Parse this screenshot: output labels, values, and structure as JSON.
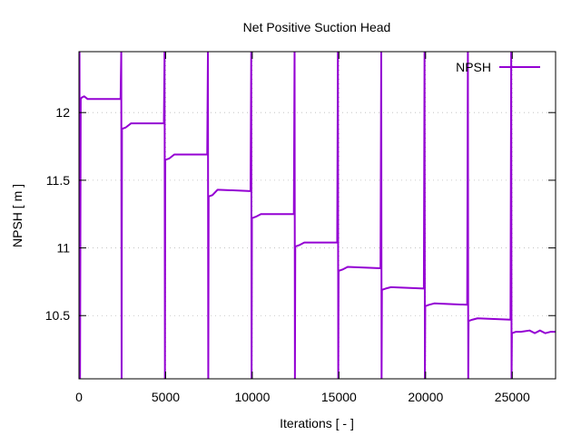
{
  "chart_data": {
    "type": "line",
    "title": "Net Positive Suction Head",
    "xlabel": "Iterations [ - ]",
    "ylabel": "NPSH [ m ]",
    "xlim": [
      0,
      27500
    ],
    "ylim": [
      10.033,
      12.45
    ],
    "xticks": [
      0,
      5000,
      10000,
      15000,
      20000,
      25000
    ],
    "yticks": [
      10.5,
      11,
      11.5,
      12
    ],
    "ytick_labels": [
      "10.5",
      "11",
      "11.5",
      "12"
    ],
    "grid": true,
    "legend_position": "top-right",
    "line_color": "#9400d3",
    "series": [
      {
        "name": "NPSH",
        "x": [
          0,
          30,
          60,
          100,
          150,
          300,
          500,
          2400,
          2440,
          2460,
          2480,
          2700,
          3000,
          4900,
          4940,
          4960,
          4980,
          5200,
          5500,
          7400,
          7440,
          7460,
          7480,
          7700,
          8000,
          9900,
          9940,
          9960,
          9980,
          10200,
          10500,
          12400,
          12440,
          12460,
          12480,
          12700,
          13000,
          14900,
          14940,
          14960,
          14980,
          15200,
          15500,
          17400,
          17440,
          17460,
          17480,
          17700,
          18000,
          19900,
          19940,
          19960,
          19980,
          20200,
          20500,
          22400,
          22440,
          22460,
          22480,
          22700,
          23000,
          24900,
          24940,
          24960,
          24980,
          25200,
          25500,
          26000,
          26300,
          26600,
          26900,
          27200,
          27500
        ],
        "y": [
          10.96,
          12.45,
          10.033,
          12.1,
          12.11,
          12.12,
          12.1,
          12.1,
          12.45,
          10.033,
          11.88,
          11.89,
          11.92,
          11.92,
          12.45,
          10.033,
          11.65,
          11.66,
          11.69,
          11.69,
          12.45,
          10.033,
          11.38,
          11.39,
          11.43,
          11.42,
          12.45,
          10.033,
          11.22,
          11.23,
          11.25,
          11.25,
          12.45,
          10.033,
          11.01,
          11.02,
          11.04,
          11.04,
          12.45,
          10.033,
          10.83,
          10.84,
          10.86,
          10.85,
          12.45,
          10.033,
          10.69,
          10.7,
          10.71,
          10.7,
          12.45,
          10.033,
          10.57,
          10.58,
          10.59,
          10.58,
          12.45,
          10.033,
          10.46,
          10.47,
          10.48,
          10.47,
          12.45,
          10.033,
          10.37,
          10.38,
          10.38,
          10.39,
          10.37,
          10.39,
          10.37,
          10.38,
          10.38
        ]
      }
    ]
  }
}
